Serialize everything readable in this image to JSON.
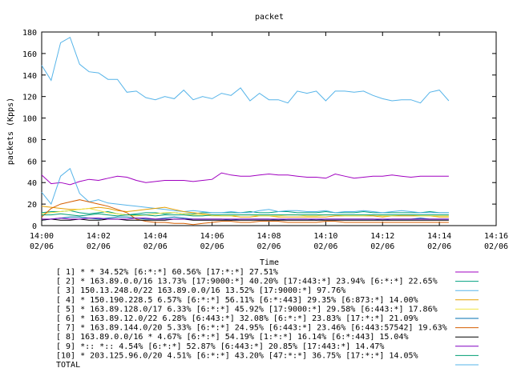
{
  "chart_data": {
    "type": "line",
    "title": "packet",
    "xlabel": "Time",
    "ylabel": "packets (Kpps)",
    "xlim": [
      "14:00",
      "14:16"
    ],
    "ylim": [
      0,
      180
    ],
    "grid": false,
    "legend_position": "bottom",
    "y_ticks": [
      "0",
      "20",
      "40",
      "60",
      "80",
      "100",
      "120",
      "140",
      "160",
      "180"
    ],
    "x_ticks": [
      {
        "time": "14:00",
        "date": "02/06"
      },
      {
        "time": "14:02",
        "date": "02/06"
      },
      {
        "time": "14:04",
        "date": "02/06"
      },
      {
        "time": "14:06",
        "date": "02/06"
      },
      {
        "time": "14:08",
        "date": "02/06"
      },
      {
        "time": "14:10",
        "date": "02/06"
      },
      {
        "time": "14:12",
        "date": "02/06"
      },
      {
        "time": "14:14",
        "date": "02/06"
      },
      {
        "time": "14:16",
        "date": "02/06"
      }
    ],
    "x": [
      "14:00:00",
      "14:00:20",
      "14:00:40",
      "14:01:00",
      "14:01:20",
      "14:01:40",
      "14:02:00",
      "14:02:20",
      "14:02:40",
      "14:03:00",
      "14:03:20",
      "14:03:40",
      "14:04:00",
      "14:04:20",
      "14:04:40",
      "14:05:00",
      "14:05:20",
      "14:05:40",
      "14:06:00",
      "14:06:20",
      "14:06:40",
      "14:07:00",
      "14:07:20",
      "14:07:40",
      "14:08:00",
      "14:08:20",
      "14:08:40",
      "14:09:00",
      "14:09:20",
      "14:09:40",
      "14:10:00",
      "14:10:20",
      "14:10:40",
      "14:11:00",
      "14:11:20",
      "14:11:40",
      "14:12:00",
      "14:12:20",
      "14:12:40",
      "14:13:00",
      "14:13:20",
      "14:13:40",
      "14:14:00",
      "14:14:20"
    ],
    "series": [
      {
        "name": "[ 1] * * 34.52%  [6:*:*] 60.56% [17:*:*] 27.51%",
        "color": "#a000c0",
        "values": [
          47,
          39,
          40,
          38,
          41,
          43,
          42,
          44,
          46,
          45,
          42,
          40,
          41,
          42,
          42,
          42,
          41,
          42,
          43,
          49,
          47,
          46,
          46,
          47,
          48,
          47,
          47,
          46,
          45,
          45,
          44,
          48,
          46,
          44,
          45,
          46,
          46,
          47,
          46,
          45,
          46,
          46,
          46,
          46
        ]
      },
      {
        "name": "[ 2] * 163.89.0.0/16 13.73%  [17:9000:*] 40.20% [17:443:*] 23.94% [6:*:*] 22.65%",
        "color": "#00a080",
        "values": [
          12,
          13,
          13,
          14,
          12,
          11,
          12,
          13,
          11,
          10,
          11,
          12,
          12,
          11,
          12,
          11,
          11,
          12,
          12,
          12,
          12,
          12,
          13,
          12,
          12,
          13,
          13,
          12,
          12,
          12,
          13,
          12,
          12,
          12,
          13,
          12,
          12,
          12,
          12,
          12,
          12,
          13,
          12,
          12
        ]
      },
      {
        "name": "[ 3] 150.13.248.0/22 163.89.0.0/16 13.52%  [17:9000:*] 97.76%",
        "color": "#56b4e9",
        "values": [
          31,
          20,
          46,
          53,
          30,
          22,
          24,
          21,
          20,
          19,
          18,
          17,
          16,
          15,
          14,
          13,
          14,
          13,
          12,
          12,
          13,
          12,
          12,
          14,
          15,
          13,
          14,
          14,
          13,
          13,
          14,
          12,
          13,
          13,
          14,
          13,
          12,
          13,
          14,
          13,
          12,
          12,
          12,
          12
        ]
      },
      {
        "name": "[ 4] * 150.190.228.5 6.57%  [6:*:*] 56.11% [6:*:443] 29.35% [6:873:*] 14.00%",
        "color": "#e69f00",
        "values": [
          18,
          17,
          16,
          15,
          15,
          16,
          17,
          16,
          14,
          13,
          14,
          15,
          16,
          17,
          15,
          13,
          12,
          11,
          10,
          9,
          9,
          8,
          8,
          9,
          9,
          8,
          8,
          8,
          8,
          8,
          8,
          9,
          9,
          9,
          9,
          9,
          8,
          9,
          9,
          9,
          9,
          9,
          8,
          8
        ]
      },
      {
        "name": "[ 5] * 163.89.128.0/17 6.33%  [6:*:*] 45.92% [17:9000:*] 29.58% [6:443:*] 17.86%",
        "color": "#f0e442",
        "values": [
          11,
          12,
          13,
          14,
          15,
          16,
          14,
          12,
          11,
          10,
          9,
          10,
          11,
          12,
          12,
          11,
          10,
          10,
          9,
          9,
          9,
          10,
          10,
          9,
          9,
          9,
          10,
          10,
          9,
          9,
          10,
          10,
          9,
          9,
          9,
          10,
          9,
          9,
          10,
          10,
          9,
          9,
          9,
          9
        ]
      },
      {
        "name": "[ 6] * 163.89.12.0/22 6.28%  [6:443:*] 32.08% [6:*:*] 23.83% [17:*:*] 21.09%",
        "color": "#0072b2",
        "values": [
          5,
          6,
          7,
          8,
          8,
          7,
          6,
          7,
          8,
          8,
          7,
          6,
          6,
          7,
          8,
          7,
          6,
          6,
          6,
          6,
          5,
          6,
          6,
          6,
          6,
          5,
          6,
          6,
          6,
          5,
          6,
          6,
          6,
          6,
          6,
          6,
          5,
          6,
          6,
          6,
          7,
          6,
          6,
          6
        ]
      },
      {
        "name": "[ 7] * 163.89.144.0/20 5.33%  [6:*:*] 24.95% [6:443:*] 23.46% [6:443:57542] 19.63%",
        "color": "#d55e00",
        "values": [
          8,
          16,
          20,
          22,
          24,
          22,
          20,
          18,
          15,
          12,
          6,
          4,
          3,
          3,
          2,
          2,
          1,
          2,
          3,
          4,
          4,
          3,
          3,
          4,
          4,
          4,
          3,
          3,
          3,
          3,
          4,
          4,
          3,
          3,
          3,
          3,
          3,
          3,
          3,
          3,
          3,
          3,
          3,
          3
        ]
      },
      {
        "name": "[ 8] 163.89.0.0/16 * 4.67%  [6:*:*] 54.19% [1:*:*] 16.14% [6:*:443] 15.04%",
        "color": "#000000",
        "values": [
          5,
          6,
          5,
          5,
          6,
          5,
          5,
          6,
          6,
          5,
          5,
          5,
          5,
          5,
          6,
          6,
          5,
          5,
          5,
          5,
          5,
          5,
          5,
          5,
          5,
          5,
          5,
          5,
          5,
          5,
          5,
          5,
          5,
          5,
          5,
          5,
          5,
          5,
          5,
          5,
          5,
          5,
          5,
          5
        ]
      },
      {
        "name": "[ 9] *:: *:: 4.54%  [6:*:*] 52.87% [6:443:*] 20.85% [17:443:*] 14.47%",
        "color": "#8000c0",
        "values": [
          6,
          6,
          7,
          6,
          6,
          7,
          7,
          6,
          6,
          6,
          7,
          7,
          6,
          6,
          6,
          6,
          6,
          6,
          6,
          6,
          6,
          6,
          6,
          6,
          6,
          6,
          6,
          6,
          6,
          6,
          6,
          6,
          6,
          6,
          6,
          6,
          6,
          6,
          6,
          6,
          6,
          6,
          6,
          6
        ]
      },
      {
        "name": "[10] * 203.125.96.0/20 4.51%  [6:*:*] 43.20% [47:*:*] 36.75% [17:*:*] 14.05%",
        "color": "#009e73",
        "values": [
          10,
          10,
          11,
          10,
          9,
          10,
          11,
          10,
          9,
          10,
          10,
          10,
          9,
          10,
          10,
          10,
          9,
          9,
          10,
          10,
          10,
          10,
          10,
          10,
          10,
          10,
          10,
          10,
          10,
          10,
          10,
          10,
          10,
          10,
          10,
          10,
          10,
          10,
          10,
          10,
          10,
          10,
          10,
          10
        ]
      },
      {
        "name": "TOTAL",
        "color": "#56b4e9",
        "values": [
          149,
          135,
          170,
          175,
          150,
          143,
          142,
          136,
          136,
          124,
          125,
          119,
          117,
          120,
          118,
          126,
          117,
          120,
          118,
          123,
          121,
          128,
          116,
          123,
          117,
          117,
          114,
          125,
          123,
          125,
          116,
          125,
          125,
          124,
          125,
          121,
          118,
          116,
          117,
          117,
          114,
          124,
          126,
          116
        ]
      }
    ]
  }
}
